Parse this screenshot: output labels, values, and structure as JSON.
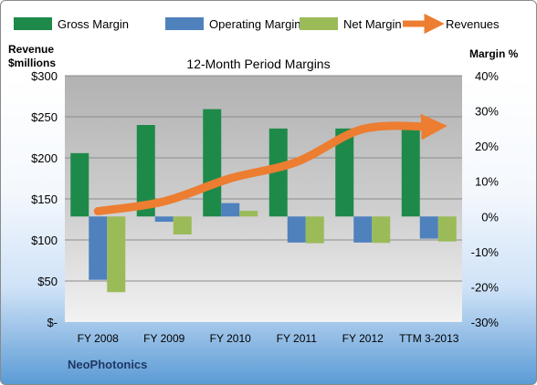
{
  "chart_data": {
    "type": "bar",
    "title": "12-Month Period Margins",
    "company": "NeoPhotonics",
    "categories": [
      "FY 2008",
      "FY 2009",
      "FY 2010",
      "FY 2011",
      "FY 2012",
      "TTM 3-2013"
    ],
    "left_axis": {
      "label_line1": "Revenue",
      "label_line2": "$millions",
      "ylim": [
        0,
        300
      ],
      "ticks": [
        0,
        50,
        100,
        150,
        200,
        250,
        300
      ],
      "tick_labels": [
        "$-",
        "$50",
        "$100",
        "$150",
        "$200",
        "$250",
        "$300"
      ]
    },
    "right_axis": {
      "label": "Margin %",
      "ylim": [
        -30,
        40
      ],
      "ticks": [
        -30,
        -20,
        -10,
        0,
        10,
        20,
        30,
        40
      ],
      "tick_labels": [
        "-30%",
        "-20%",
        "-10%",
        "0%",
        "10%",
        "20%",
        "30%",
        "40%"
      ]
    },
    "series": [
      {
        "name": "Gross Margin",
        "type": "bar",
        "axis": "right",
        "color": "#1e8a4a",
        "values": [
          18,
          26,
          30.5,
          25,
          25,
          25
        ]
      },
      {
        "name": "Operating Margin",
        "type": "bar",
        "axis": "right",
        "color": "#4f81bd",
        "values": [
          -18,
          -1.5,
          3.8,
          -7.4,
          -7.4,
          -6.3
        ]
      },
      {
        "name": "Net Margin",
        "type": "bar",
        "axis": "right",
        "color": "#9bbb59",
        "values": [
          -21.5,
          -5.1,
          1.6,
          -7.6,
          -7.5,
          -7.1
        ]
      },
      {
        "name": "Revenues",
        "type": "line",
        "axis": "left",
        "color": "#ed7d31",
        "values": [
          135,
          147,
          175,
          195,
          235,
          238
        ]
      }
    ],
    "grid": true,
    "legend_position": "top"
  }
}
